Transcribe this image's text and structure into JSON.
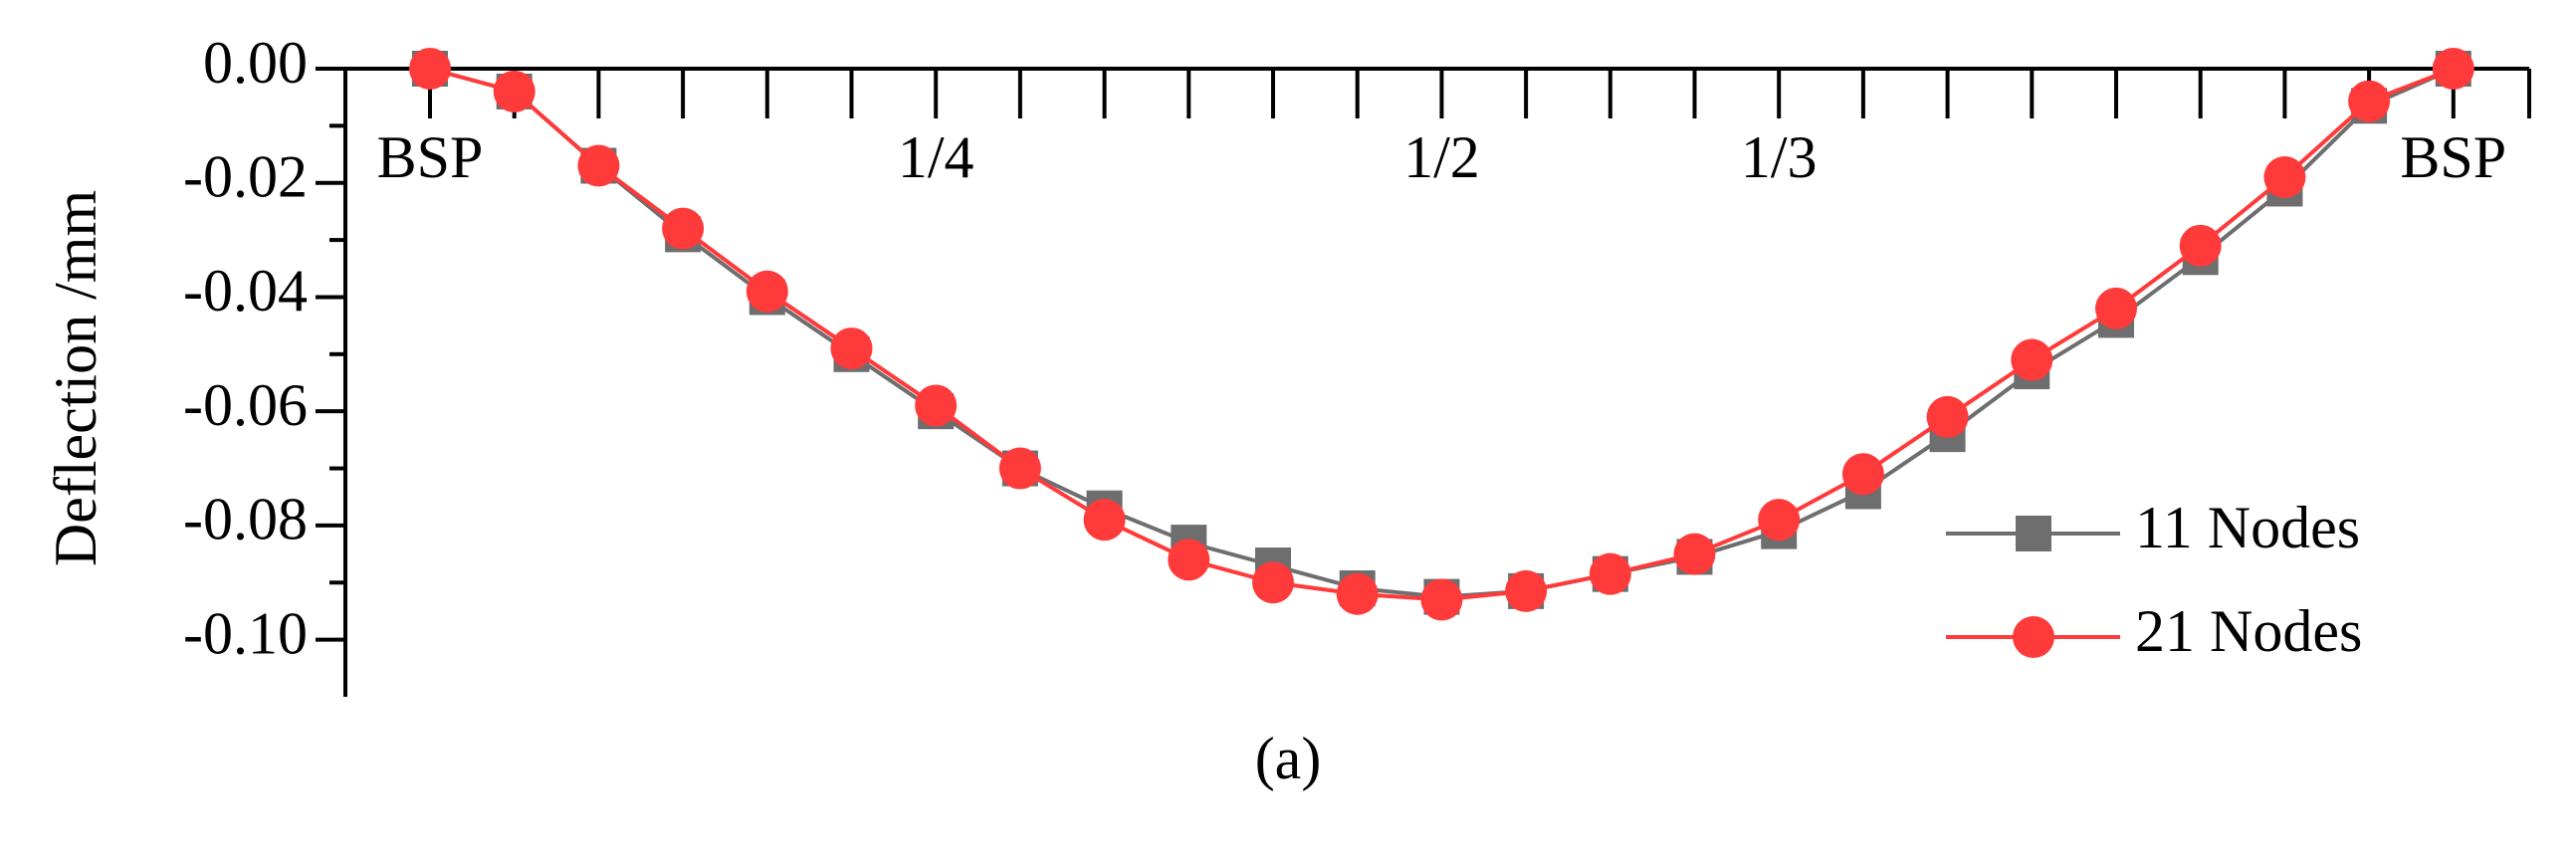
{
  "chart_data": {
    "type": "line",
    "y_label": "Deflection /mm",
    "caption": "(a)",
    "categories": [
      "BSP",
      null,
      null,
      null,
      null,
      null,
      "1/4",
      null,
      null,
      null,
      null,
      null,
      "1/2",
      null,
      null,
      null,
      "1/3",
      null,
      null,
      null,
      null,
      null,
      null,
      null,
      "BSP"
    ],
    "series": [
      {
        "name": "11 Nodes",
        "color": "#6e6e6e",
        "marker": "square",
        "values": [
          0,
          -0.004,
          -0.017,
          -0.029,
          -0.04,
          -0.05,
          -0.06,
          -0.07,
          -0.077,
          -0.083,
          -0.087,
          -0.091,
          -0.0925,
          -0.0915,
          -0.0885,
          -0.0855,
          -0.081,
          -0.074,
          -0.064,
          -0.053,
          -0.044,
          -0.033,
          -0.021,
          -0.0065,
          0
        ]
      },
      {
        "name": "21 Nodes",
        "color": "#ff3a3a",
        "marker": "circle",
        "values": [
          0,
          -0.004,
          -0.017,
          -0.028,
          -0.039,
          -0.049,
          -0.059,
          -0.07,
          -0.079,
          -0.086,
          -0.09,
          -0.092,
          -0.093,
          -0.0915,
          -0.0885,
          -0.085,
          -0.079,
          -0.071,
          -0.061,
          -0.051,
          -0.042,
          -0.031,
          -0.019,
          -0.0057,
          0
        ]
      }
    ],
    "ylim": [
      -0.11,
      0
    ],
    "yticks": [
      {
        "value": 0,
        "label": "0.00"
      },
      {
        "value": -0.02,
        "label": "-0.02"
      },
      {
        "value": -0.04,
        "label": "-0.04"
      },
      {
        "value": -0.06,
        "label": "-0.06"
      },
      {
        "value": -0.08,
        "label": "-0.08"
      },
      {
        "value": -0.1,
        "label": "-0.10"
      }
    ],
    "legend": "lower right"
  }
}
